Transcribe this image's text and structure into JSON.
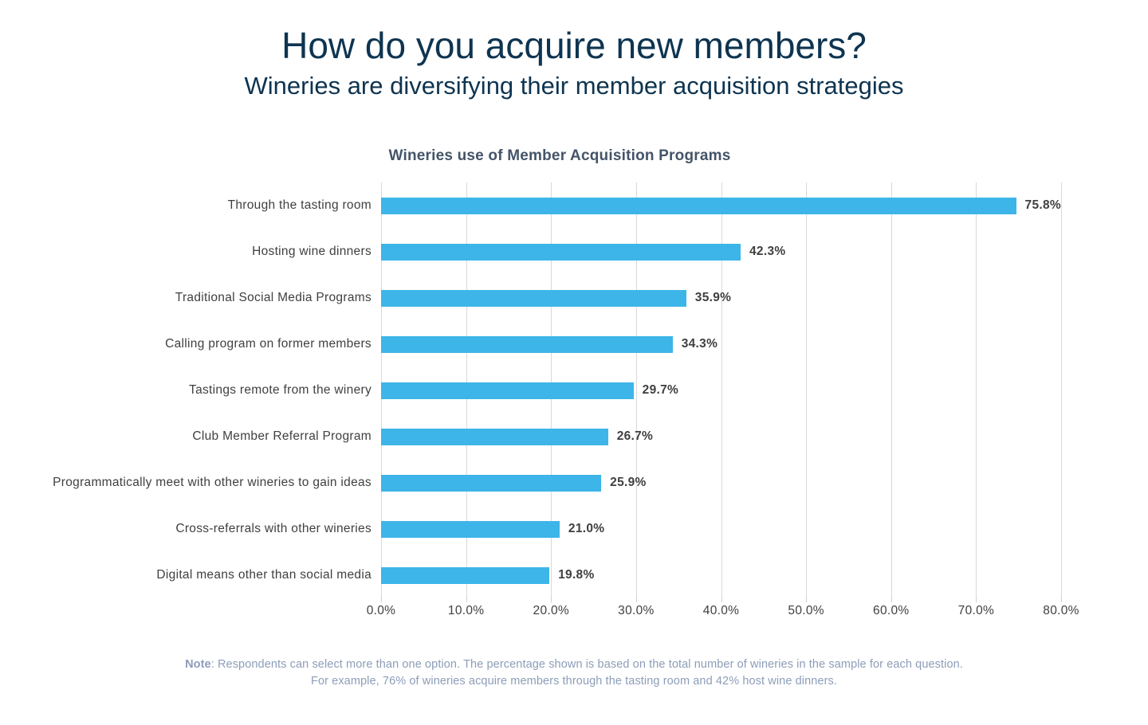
{
  "header": {
    "title": "How do you acquire new members?",
    "subtitle": "Wineries are diversifying their member acquisition strategies"
  },
  "chart": {
    "title": "Wineries use of Member Acquisition Programs",
    "bar_color": "#3db5e8",
    "gridline_color": "#d9d9d9",
    "text_color": "#404040"
  },
  "chart_data": {
    "type": "bar",
    "orientation": "horizontal",
    "title": "Wineries use of Member Acquisition Programs",
    "categories": [
      "Through the tasting room",
      "Hosting wine dinners",
      "Traditional Social Media Programs",
      "Calling program on former members",
      "Tastings remote from the winery",
      "Club Member Referral Program",
      "Programmatically meet with other wineries to gain ideas",
      "Cross-referrals with other wineries",
      "Digital means other than social media"
    ],
    "values": [
      75.8,
      42.3,
      35.9,
      34.3,
      29.7,
      26.7,
      25.9,
      21.0,
      19.8
    ],
    "value_labels": [
      "75.8%",
      "42.3%",
      "35.9%",
      "34.3%",
      "29.7%",
      "26.7%",
      "25.9%",
      "21.0%",
      "19.8%"
    ],
    "xlabel": "",
    "ylabel": "",
    "xlim": [
      0,
      80
    ],
    "x_ticks": [
      "0.0%",
      "10.0%",
      "20.0%",
      "30.0%",
      "40.0%",
      "50.0%",
      "60.0%",
      "70.0%",
      "80.0%"
    ],
    "grid": true,
    "legend": false
  },
  "note": {
    "label": "Note",
    "line1_rest": ": Respondents can select more than one option. The percentage shown is based on the total number of wineries in the sample for each question.",
    "line2": "For example, 76% of wineries acquire members through the tasting room and 42% host wine dinners."
  }
}
